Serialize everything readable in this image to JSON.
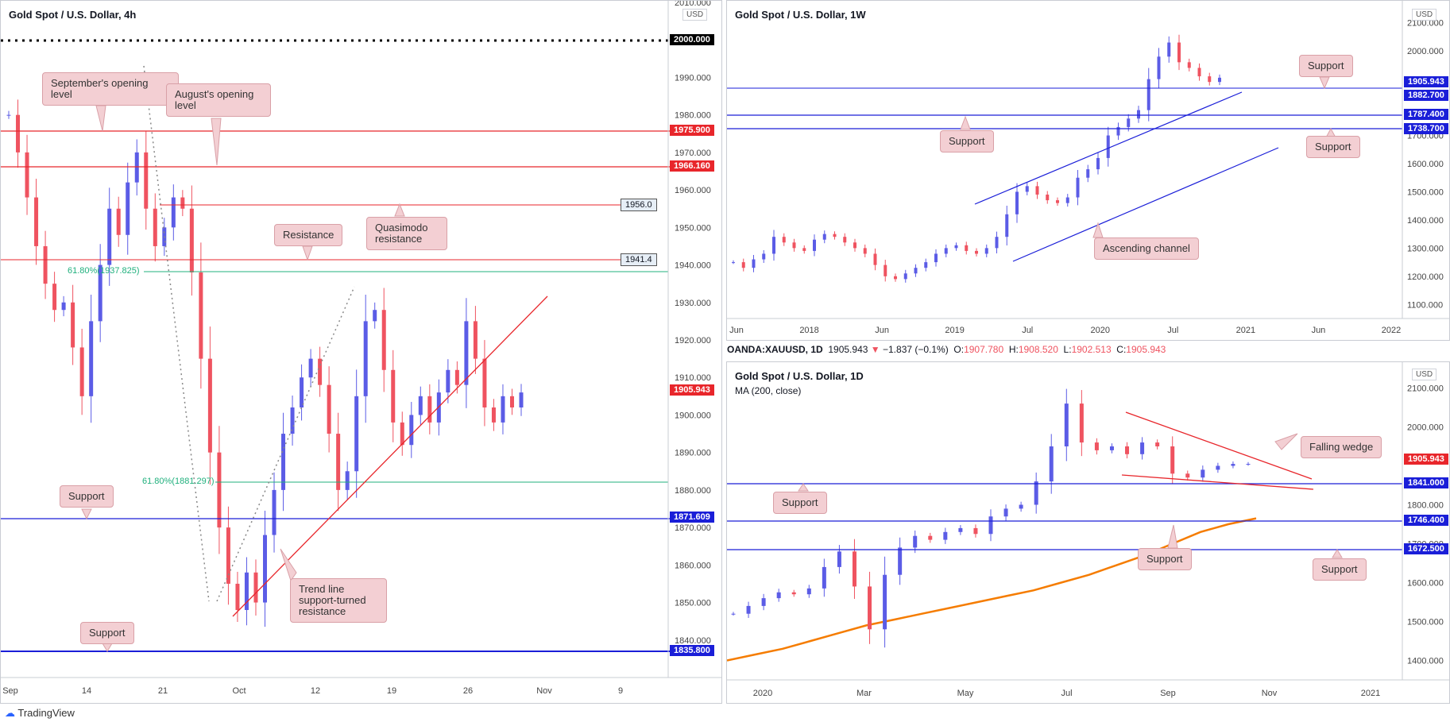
{
  "chart_data": [
    {
      "type": "candlestick",
      "title": "Gold Spot / U.S. Dollar, 4h",
      "currency_badge": "USD",
      "ylim": [
        1830,
        2010
      ],
      "y_ticks": [
        "2010.000",
        "1990.000",
        "1980.000",
        "1970.000",
        "1960.000",
        "1950.000",
        "1940.000",
        "1930.000",
        "1920.000",
        "1910.000",
        "1900.000",
        "1890.000",
        "1880.000",
        "1870.000",
        "1860.000",
        "1850.000",
        "1840.000"
      ],
      "x_ticks": [
        "Sep",
        "14",
        "21",
        "Oct",
        "12",
        "19",
        "26",
        "Nov",
        "9"
      ],
      "close_series": [
        1980,
        1970,
        1958,
        1945,
        1935,
        1928,
        1930,
        1918,
        1905,
        1925,
        1940,
        1955,
        1948,
        1962,
        1970,
        1955,
        1945,
        1950,
        1958,
        1955,
        1938,
        1915,
        1890,
        1870,
        1855,
        1848,
        1858,
        1850,
        1868,
        1880,
        1895,
        1902,
        1910,
        1915,
        1908,
        1895,
        1880,
        1885,
        1905,
        1925,
        1928,
        1912,
        1898,
        1892,
        1900,
        1905,
        1898,
        1906,
        1912,
        1908,
        1925,
        1915,
        1902,
        1898,
        1905,
        1902,
        1906
      ],
      "price_labels": [
        {
          "value": "2000.000",
          "price": 2000,
          "color": "#000000"
        },
        {
          "value": "1975.900",
          "price": 1975.9,
          "color": "#e8262b"
        },
        {
          "value": "1966.160",
          "price": 1966.16,
          "color": "#e8262b"
        },
        {
          "value": "1956.0",
          "price": 1956.0,
          "color": "boxed"
        },
        {
          "value": "1941.4",
          "price": 1941.4,
          "color": "boxed"
        },
        {
          "value": "1905.943",
          "price": 1905.943,
          "color": "#e8262b"
        },
        {
          "value": "1871.609",
          "price": 1871.609,
          "color": "#1a1ed8"
        },
        {
          "value": "1835.800",
          "price": 1835.8,
          "color": "#1a1ed8"
        }
      ],
      "fib_labels": [
        "61.80%(1937.825)",
        "61.80%(1881.297)"
      ],
      "annotations": [
        "September's opening level",
        "August's opening level",
        "Resistance",
        "Quasimodo resistance",
        "Support",
        "Trend line support-turned resistance",
        "Support"
      ]
    },
    {
      "type": "candlestick",
      "title": "Gold Spot / U.S. Dollar, 1W",
      "currency_badge": "USD",
      "ylim": [
        1050,
        2150
      ],
      "y_ticks": [
        "2100.000",
        "2000.000",
        "1700.000",
        "1600.000",
        "1500.000",
        "1400.000",
        "1300.000",
        "1200.000",
        "1100.000"
      ],
      "x_ticks": [
        "Jun",
        "2018",
        "Jun",
        "2019",
        "Jul",
        "2020",
        "Jul",
        "2021",
        "Jun",
        "2022"
      ],
      "close_series": [
        1250,
        1230,
        1260,
        1280,
        1340,
        1320,
        1300,
        1290,
        1330,
        1350,
        1340,
        1320,
        1300,
        1280,
        1240,
        1200,
        1190,
        1210,
        1230,
        1250,
        1280,
        1300,
        1310,
        1290,
        1280,
        1300,
        1340,
        1420,
        1500,
        1520,
        1490,
        1470,
        1460,
        1480,
        1550,
        1580,
        1620,
        1700,
        1730,
        1760,
        1790,
        1900,
        1980,
        2030,
        1960,
        1940,
        1910,
        1890,
        1905
      ],
      "price_labels": [
        {
          "value": "1905.943",
          "price": 1905.943,
          "color": "#1a1ed8"
        },
        {
          "value": "1882.700",
          "price": 1882.7,
          "color": "#1a1ed8"
        },
        {
          "value": "1787.400",
          "price": 1787.4,
          "color": "#1a1ed8"
        },
        {
          "value": "1738.700",
          "price": 1738.7,
          "color": "#1a1ed8"
        }
      ],
      "annotations": [
        "Support",
        "Support",
        "Support",
        "Ascending channel"
      ]
    },
    {
      "type": "candlestick",
      "title": "Gold Spot / U.S. Dollar, 1D",
      "currency_badge": "USD",
      "ylim": [
        1350,
        2150
      ],
      "indicator": "MA (200, close)",
      "ma_series": [
        1400,
        1415,
        1430,
        1450,
        1470,
        1490,
        1505,
        1520,
        1535,
        1550,
        1565,
        1580,
        1600,
        1620,
        1645,
        1670,
        1700,
        1730,
        1750,
        1765
      ],
      "y_ticks": [
        "2100.000",
        "2000.000",
        "1800.000",
        "1700.000",
        "1600.000",
        "1500.000",
        "1400.000"
      ],
      "x_ticks": [
        "2020",
        "Mar",
        "May",
        "Jul",
        "Sep",
        "Nov",
        "2021"
      ],
      "close_series": [
        1520,
        1540,
        1560,
        1575,
        1570,
        1585,
        1640,
        1680,
        1590,
        1480,
        1620,
        1690,
        1720,
        1710,
        1730,
        1740,
        1725,
        1770,
        1790,
        1800,
        1860,
        1950,
        2060,
        1960,
        1940,
        1950,
        1930,
        1960,
        1950,
        1880,
        1870,
        1890,
        1900,
        1905,
        1905
      ],
      "price_labels": [
        {
          "value": "1905.943",
          "price": 1905.943,
          "color": "#e8262b"
        },
        {
          "value": "1841.000",
          "price": 1841,
          "color": "#1a1ed8"
        },
        {
          "value": "1746.400",
          "price": 1746.4,
          "color": "#1a1ed8"
        },
        {
          "value": "1672.500",
          "price": 1672.5,
          "color": "#1a1ed8"
        }
      ],
      "annotations": [
        "Falling wedge",
        "Support",
        "Support",
        "Support"
      ]
    }
  ],
  "infobar": {
    "symbol": "OANDA:XAUUSD, 1D",
    "price": "1905.943",
    "change": "−1.837 (−0.1%)",
    "o_label": "O:",
    "o": "1907.780",
    "h_label": "H:",
    "h": "1908.520",
    "l_label": "L:",
    "l": "1902.513",
    "c_label": "C:",
    "c": "1905.943"
  },
  "branding": "TradingView",
  "colors": {
    "up": "#5b5ce6",
    "down": "#ef5360",
    "support": "#1a1ed8",
    "resistance": "#e8262b",
    "fib": "#20b07d",
    "ma": "#f57c00"
  }
}
